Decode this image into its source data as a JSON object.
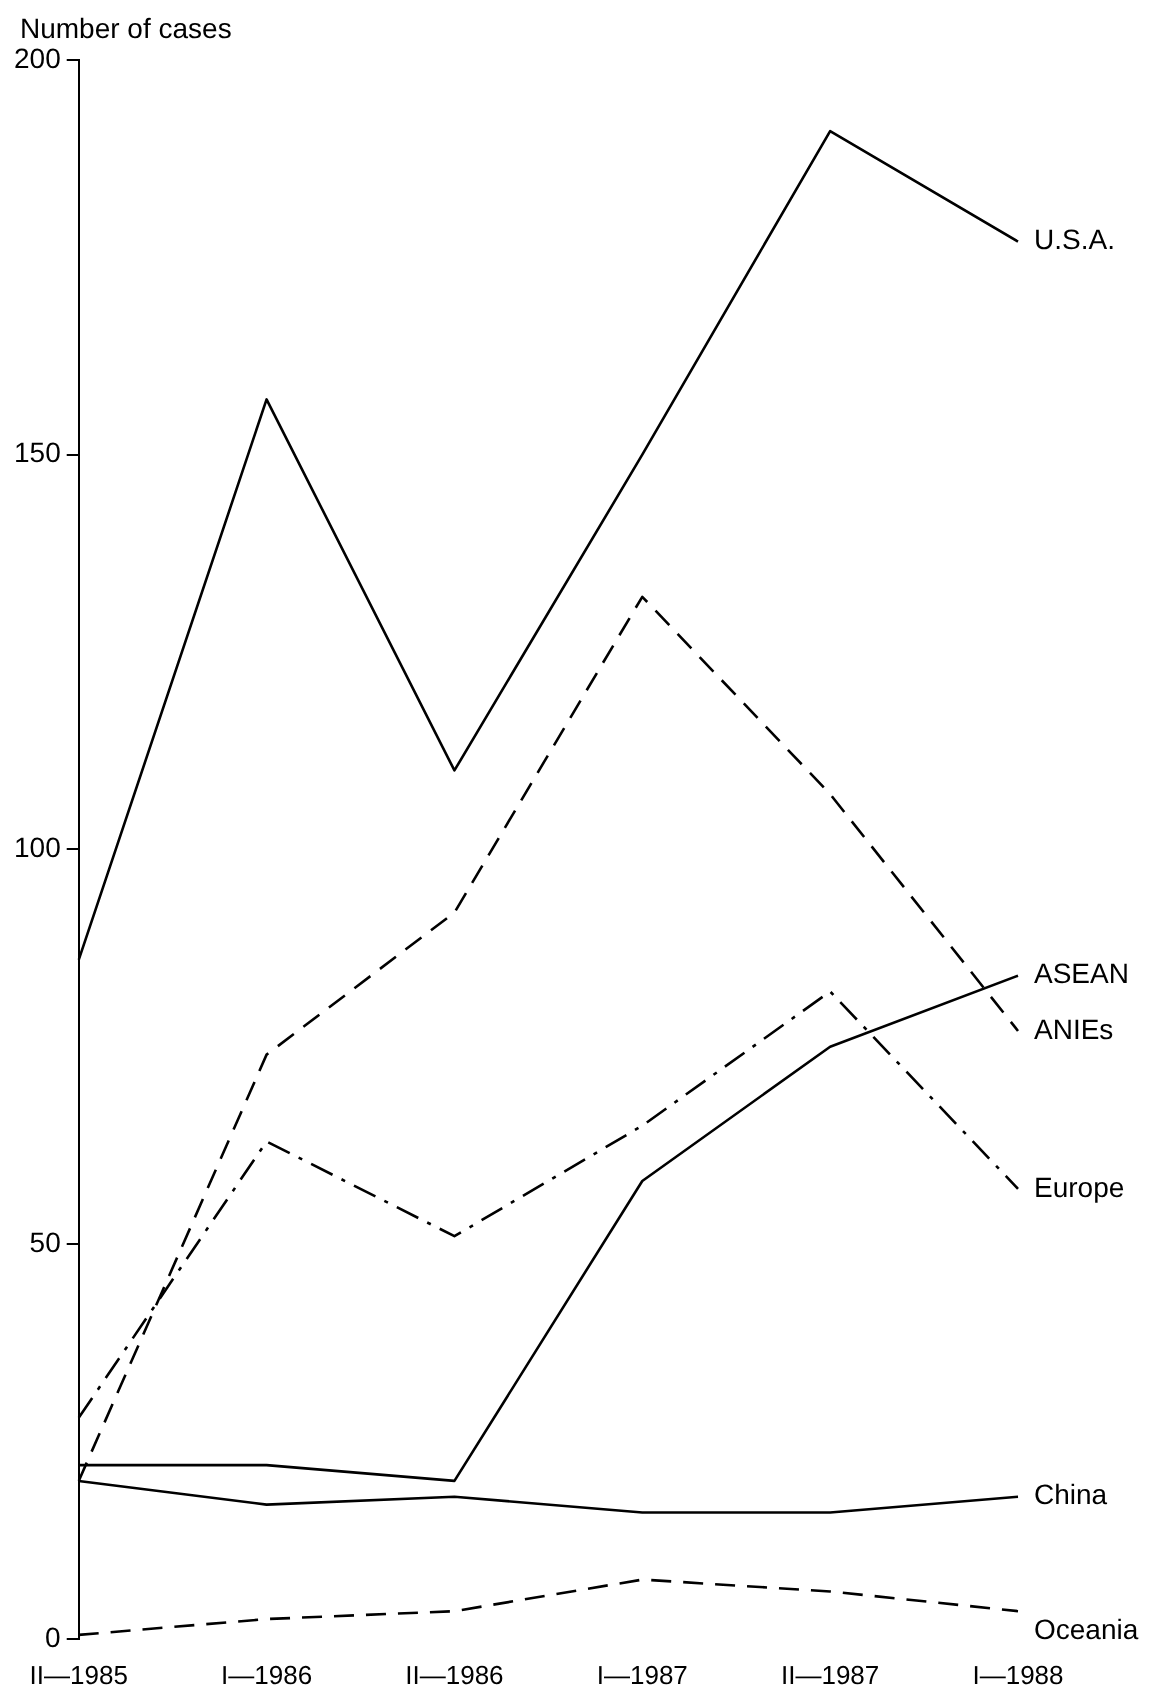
{
  "chart_data": {
    "type": "line",
    "ylabel": "Number of cases",
    "categories": [
      "II—1985",
      "I—1986",
      "II—1986",
      "I—1987",
      "II—1987",
      "I—1988"
    ],
    "series": [
      {
        "name": "U.S.A.",
        "color": "#000000",
        "line_style": "solid",
        "values": [
          86,
          157,
          110,
          150,
          191,
          177
        ]
      },
      {
        "name": "ANIEs",
        "color": "#000000",
        "line_style": "dashed",
        "values": [
          20,
          74,
          92,
          132,
          107,
          77
        ]
      },
      {
        "name": "Europe",
        "color": "#000000",
        "line_style": "dashdot",
        "values": [
          28,
          63,
          51,
          65,
          82,
          57
        ]
      },
      {
        "name": "ASEAN",
        "color": "#000000",
        "line_style": "solid",
        "values": [
          22,
          22,
          20,
          58,
          75,
          84
        ]
      },
      {
        "name": "China",
        "color": "#000000",
        "line_style": "solid",
        "values": [
          20,
          17,
          18,
          16,
          16,
          18
        ]
      },
      {
        "name": "Oceania",
        "color": "#000000",
        "line_style": "dashed",
        "values": [
          0.5,
          2.5,
          3.5,
          7.5,
          6,
          3.5
        ]
      }
    ],
    "ylim": [
      0,
      200
    ],
    "yticks": [
      0,
      50,
      100,
      150,
      200
    ],
    "grid": false,
    "legend": false,
    "marker": "none"
  }
}
